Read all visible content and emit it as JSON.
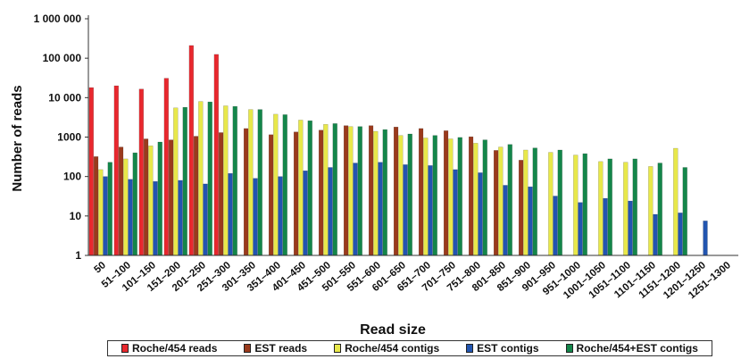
{
  "chart_data": {
    "type": "bar",
    "xlabel": "Read size",
    "ylabel": "Number of reads",
    "yscale": "log",
    "ylim": [
      1,
      1000000
    ],
    "yticks": [
      "1",
      "10",
      "100",
      "1000",
      "10 000",
      "100 000",
      "1 000 000"
    ],
    "legend_position": "bottom",
    "categories": [
      "50",
      "51–100",
      "101–150",
      "151–200",
      "201–250",
      "251–300",
      "301–350",
      "351–400",
      "401–450",
      "451–500",
      "501–550",
      "551–600",
      "601–650",
      "651–700",
      "701–750",
      "751–800",
      "801–850",
      "851–900",
      "901–950",
      "951–1000",
      "1001–1050",
      "1051–1100",
      "1101–1150",
      "1151–1200",
      "1201–1250",
      "1251–1300"
    ],
    "series": [
      {
        "name": "Roche/454 reads",
        "color": "#e8282e",
        "values": [
          18000,
          20000,
          16500,
          31000,
          210000,
          125000,
          null,
          null,
          null,
          null,
          null,
          null,
          null,
          null,
          null,
          null,
          null,
          null,
          null,
          null,
          null,
          null,
          null,
          null,
          null,
          null
        ]
      },
      {
        "name": "EST reads",
        "color": "#9a3a1c",
        "values": [
          320,
          560,
          900,
          850,
          1050,
          1300,
          1650,
          1150,
          1350,
          1500,
          1950,
          1950,
          1800,
          1650,
          1450,
          1020,
          460,
          260,
          null,
          null,
          null,
          null,
          null,
          null,
          null,
          null
        ]
      },
      {
        "name": "Roche/454 contigs",
        "color": "#e8e84a",
        "values": [
          150,
          280,
          600,
          5500,
          8000,
          6200,
          5000,
          3800,
          2700,
          2100,
          1850,
          1400,
          1100,
          950,
          900,
          700,
          560,
          470,
          410,
          350,
          240,
          230,
          180,
          520,
          null,
          null
        ]
      },
      {
        "name": "EST contigs",
        "color": "#2255b0",
        "values": [
          100,
          85,
          75,
          80,
          65,
          120,
          90,
          100,
          140,
          170,
          220,
          230,
          200,
          190,
          150,
          125,
          60,
          55,
          32,
          22,
          28,
          24,
          11,
          12,
          7.5,
          null
        ]
      },
      {
        "name": "Roche/454+EST contigs",
        "color": "#13864a",
        "values": [
          230,
          400,
          750,
          5700,
          7800,
          6000,
          5000,
          3700,
          2600,
          2200,
          1850,
          1550,
          1200,
          1100,
          980,
          850,
          650,
          530,
          470,
          380,
          280,
          280,
          220,
          170,
          null,
          null
        ]
      }
    ]
  }
}
